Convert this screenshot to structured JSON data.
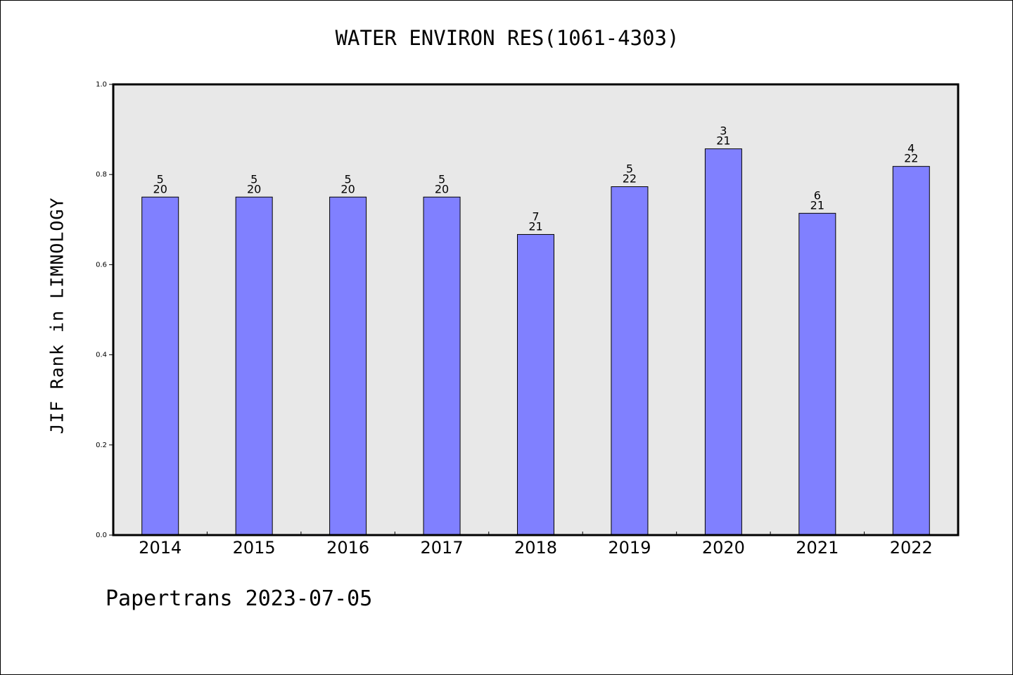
{
  "chart_data": {
    "type": "bar",
    "title": "WATER ENVIRON RES(1061-4303)",
    "ylabel": "JIF Rank in LIMNOLOGY",
    "xlabel": "",
    "categories": [
      "2014",
      "2015",
      "2016",
      "2017",
      "2018",
      "2019",
      "2020",
      "2021",
      "2022"
    ],
    "values": [
      0.75,
      0.75,
      0.75,
      0.75,
      0.667,
      0.773,
      0.857,
      0.714,
      0.818
    ],
    "rank": [
      "5",
      "5",
      "5",
      "5",
      "7",
      "5",
      "3",
      "6",
      "4"
    ],
    "total": [
      "20",
      "20",
      "20",
      "20",
      "21",
      "22",
      "21",
      "21",
      "22"
    ],
    "ylim": [
      0,
      1.0
    ],
    "yticks": [
      "0.0",
      "0.2",
      "0.4",
      "0.6",
      "0.8",
      "1.0"
    ],
    "grid": false,
    "bar_color": "#8080ff",
    "plot_background": "#e8e8e8"
  },
  "footer": "Papertrans 2023-07-05"
}
